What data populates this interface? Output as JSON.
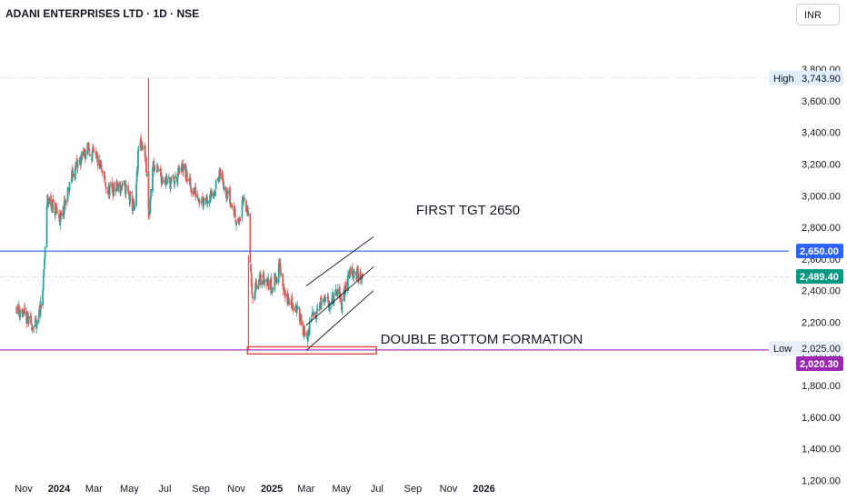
{
  "header": {
    "title": "ADANI ENTERPRISES LTD · 1D · NSE",
    "currency": "INR"
  },
  "colors": {
    "up": "#26a69a",
    "down": "#ef5350",
    "level": "#2962ff",
    "low": "#9c27b0",
    "box": "#e53935",
    "last": "#089981"
  },
  "chart_data": {
    "type": "candlestick",
    "y_axis": {
      "ticks": [
        1200,
        1400,
        1600,
        1800,
        2000,
        2200,
        2400,
        2600,
        2800,
        3000,
        3200,
        3400,
        3600,
        3800
      ],
      "tick_labels": [
        "1,200.00",
        "1,400.00",
        "1,600.00",
        "1,800.00",
        "2,000.00",
        "2,200.00",
        "2,400.00",
        "2,600.00",
        "2,800.00",
        "3,000.00",
        "3,200.00",
        "3,400.00",
        "3,600.00",
        "3,800.00"
      ],
      "ylim": [
        1100,
        3850
      ]
    },
    "x_axis": {
      "tick_labels": [
        "Nov",
        "2024",
        "Mar",
        "May",
        "Jul",
        "Sep",
        "Nov",
        "2025",
        "Mar",
        "May",
        "Jul",
        "Sep",
        "Nov",
        "2026"
      ],
      "tick_dates": [
        "2023-11-01",
        "2024-01-01",
        "2024-03-01",
        "2024-05-01",
        "2024-07-01",
        "2024-09-01",
        "2024-11-01",
        "2025-01-01",
        "2025-03-01",
        "2025-05-01",
        "2025-07-01",
        "2025-09-01",
        "2025-11-01",
        "2026-01-01"
      ]
    },
    "price_labels": [
      {
        "label": "High",
        "value_text": "3,743.90",
        "value": 3743.9
      },
      {
        "label": "",
        "value_text": "2,650.00",
        "value": 2650
      },
      {
        "label": "",
        "value_text": "2,489.40",
        "value": 2489.4
      },
      {
        "label": "Low",
        "value_text": "2,025.00",
        "value": 2025
      },
      {
        "label": "",
        "value_text": "2,020.30",
        "value": 2020.3
      }
    ],
    "close_path": [
      [
        "2023-10-20",
        2300
      ],
      [
        "2023-11-10",
        2200
      ],
      [
        "2023-11-25",
        2170
      ],
      [
        "2023-12-05",
        2450
      ],
      [
        "2023-12-12",
        2980
      ],
      [
        "2024-01-05",
        2850
      ],
      [
        "2024-01-25",
        3150
      ],
      [
        "2024-02-20",
        3300
      ],
      [
        "2024-03-10",
        3200
      ],
      [
        "2024-03-25",
        3020
      ],
      [
        "2024-04-10",
        3050
      ],
      [
        "2024-04-25",
        3050
      ],
      [
        "2024-05-10",
        2900
      ],
      [
        "2024-05-18",
        3350
      ],
      [
        "2024-05-28",
        3280
      ],
      [
        "2024-06-04",
        2850
      ],
      [
        "2024-06-10",
        3200
      ],
      [
        "2024-06-25",
        3120
      ],
      [
        "2024-07-15",
        3080
      ],
      [
        "2024-08-01",
        3180
      ],
      [
        "2024-08-15",
        3050
      ],
      [
        "2024-09-01",
        2980
      ],
      [
        "2024-09-20",
        3000
      ],
      [
        "2024-10-05",
        3140
      ],
      [
        "2024-10-20",
        2980
      ],
      [
        "2024-11-05",
        2820
      ],
      [
        "2024-11-15",
        3000
      ],
      [
        "2024-11-22",
        2850
      ],
      [
        "2024-11-28",
        2330
      ],
      [
        "2024-12-05",
        2450
      ],
      [
        "2024-12-20",
        2480
      ],
      [
        "2025-01-01",
        2420
      ],
      [
        "2025-01-15",
        2550
      ],
      [
        "2025-01-25",
        2350
      ],
      [
        "2025-02-10",
        2300
      ],
      [
        "2025-02-20",
        2230
      ],
      [
        "2025-03-01",
        2070
      ],
      [
        "2025-03-10",
        2220
      ],
      [
        "2025-03-25",
        2320
      ],
      [
        "2025-04-10",
        2330
      ],
      [
        "2025-04-25",
        2380
      ],
      [
        "2025-05-01",
        2320
      ],
      [
        "2025-05-15",
        2520
      ],
      [
        "2025-05-25",
        2530
      ],
      [
        "2025-06-01",
        2470
      ],
      [
        "2025-06-06",
        2489.4
      ]
    ],
    "spikes": [
      {
        "date": "2024-06-03",
        "high": 3743.9,
        "low": 2850
      },
      {
        "date": "2024-11-22",
        "high": 2620,
        "low": 2025
      }
    ],
    "lines": [
      {
        "name": "First target",
        "value": 2650
      },
      {
        "name": "Low",
        "value": 2025
      }
    ],
    "channel": [
      {
        "from": [
          "2025-03-01",
          2430
        ],
        "to": [
          "2025-06-25",
          2740
        ]
      },
      {
        "from": [
          "2025-03-01",
          2180
        ],
        "to": [
          "2025-06-25",
          2550
        ]
      },
      {
        "from": [
          "2025-03-01",
          2020
        ],
        "to": [
          "2025-06-25",
          2400
        ]
      }
    ],
    "annotations": [
      {
        "text": "FIRST TGT 2650"
      },
      {
        "text": "DOUBLE BOTTOM FORMATION"
      }
    ],
    "support_box": {
      "from": "2024-11-20",
      "to": "2025-06-30",
      "low": 2000,
      "high": 2045
    }
  }
}
